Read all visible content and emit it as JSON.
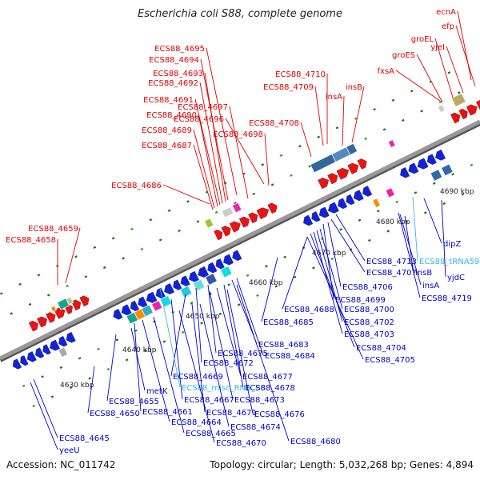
{
  "title": "Escherichia coli S88, complete genome",
  "footer": {
    "accession_label": "Accession:",
    "accession": "NC_011742",
    "topology_label": "Topology:",
    "topology": "circular",
    "length_label": "Length:",
    "length": "5,032,268 bp",
    "genes_label": "Genes:",
    "genes": "4,894"
  },
  "colors": {
    "forward_label": "#e00000",
    "reverse_label": "#0000cc",
    "rna_label": "#33bbdd",
    "backbone": "#999999"
  },
  "scale_marks": [
    "4630 kbp",
    "4640 kbp",
    "4650 kbp",
    "4660 kbp",
    "4670 kbp",
    "4680 kbp",
    "4690 kbp"
  ],
  "forward_genes": [
    "ecnA",
    "efp",
    "groEL",
    "yjeI",
    "groES",
    "fxsA",
    "insB",
    "insA",
    "ECS88_4710",
    "ECS88_4709",
    "ECS88_4708",
    "ECS88_4695",
    "ECS88_4694",
    "ECS88_4693",
    "ECS88_4692",
    "ECS88_4691",
    "ECS88_4690",
    "ECS88_4689",
    "ECS88_4687",
    "ECS88_4697",
    "ECS88_4696",
    "ECS88_4698",
    "ECS88_4686",
    "ECS88_4659",
    "ECS88_4658"
  ],
  "reverse_genes": [
    "dipZ",
    "ECS88_tRNA59",
    "yjdC",
    "ECS88_4713",
    "insB",
    "insA",
    "ECS88_4719",
    "ECS88_4707",
    "ECS88_4706",
    "ECS88_4699",
    "ECS88_4688",
    "ECS88_4700",
    "ECS88_4685",
    "ECS88_4702",
    "ECS88_4703",
    "ECS88_4704",
    "ECS88_4705",
    "ECS88_4683",
    "ECS88_4675",
    "ECS88_4684",
    "ECS88_4672",
    "ECS88_4669",
    "ECS88_4677",
    "ECS88_misc_RNA_86",
    "metK",
    "ECS88_4678",
    "ECS88_4655",
    "ECS88_4667",
    "ECS88_4673",
    "ECS88_4650",
    "ECS88_4661",
    "ECS88_4671",
    "ECS88_4676",
    "ECS88_4664",
    "ECS88_4674",
    "ECS88_4665",
    "ECS88_4645",
    "ECS88_4670",
    "ECS88_4680",
    "yeeU"
  ]
}
